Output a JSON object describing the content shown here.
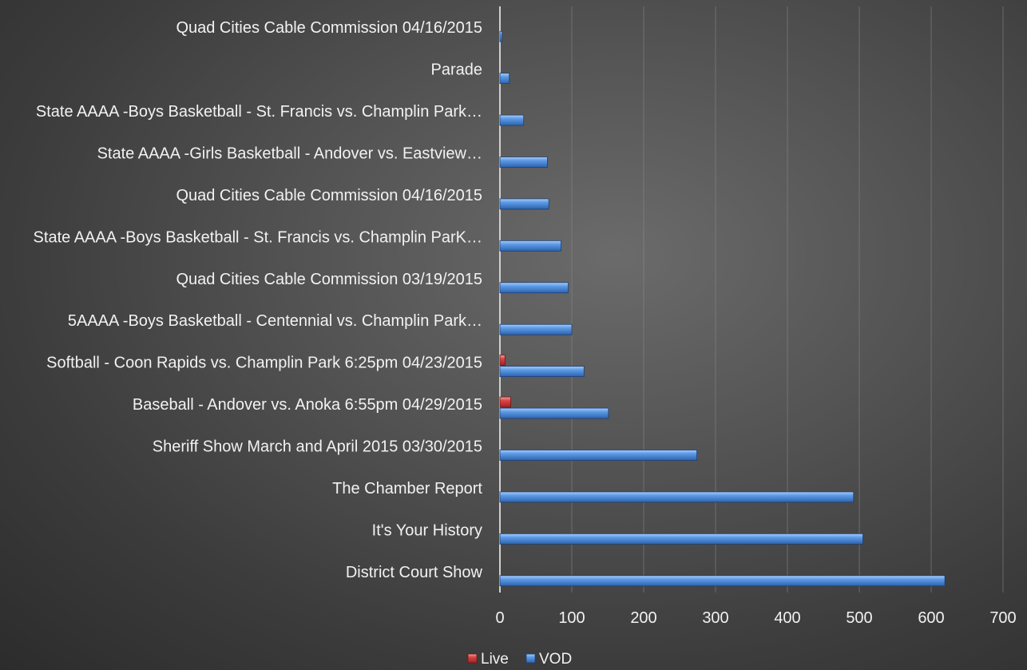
{
  "chart_data": {
    "type": "bar",
    "orientation": "horizontal",
    "categories": [
      "Quad Cities Cable Commission 04/16/2015",
      "Parade",
      "State AAAA -Boys Basketball - St. Francis vs. Champlin Park…",
      "State AAAA -Girls Basketball - Andover vs. Eastview…",
      "Quad Cities Cable Commission 04/16/2015",
      "State AAAA -Boys Basketball - St. Francis vs. Champlin ParK…",
      "Quad Cities Cable Commission 03/19/2015",
      "5AAAA -Boys Basketball - Centennial vs. Champlin Park…",
      "Softball - Coon Rapids vs. Champlin Park 6:25pm 04/23/2015",
      "Baseball - Andover vs. Anoka 6:55pm 04/29/2015",
      "Sheriff Show March and April 2015 03/30/2015",
      "The Chamber Report",
      "It's Your History",
      "District Court Show"
    ],
    "series": [
      {
        "name": "Live",
        "color": "#d23a3a",
        "values": [
          0,
          0,
          0,
          0,
          0,
          0,
          0,
          0,
          7,
          15,
          0,
          0,
          0,
          0
        ]
      },
      {
        "name": "VOD",
        "color": "#4f8fe0",
        "values": [
          3,
          13,
          33,
          66,
          68,
          85,
          95,
          100,
          117,
          151,
          274,
          492,
          505,
          619
        ]
      }
    ],
    "xlim": [
      0,
      700
    ],
    "xticks": [
      "0",
      "100",
      "200",
      "300",
      "400",
      "500",
      "600",
      "700"
    ],
    "grid": true,
    "legend": "bottom",
    "title": "",
    "xlabel": "",
    "ylabel": ""
  }
}
